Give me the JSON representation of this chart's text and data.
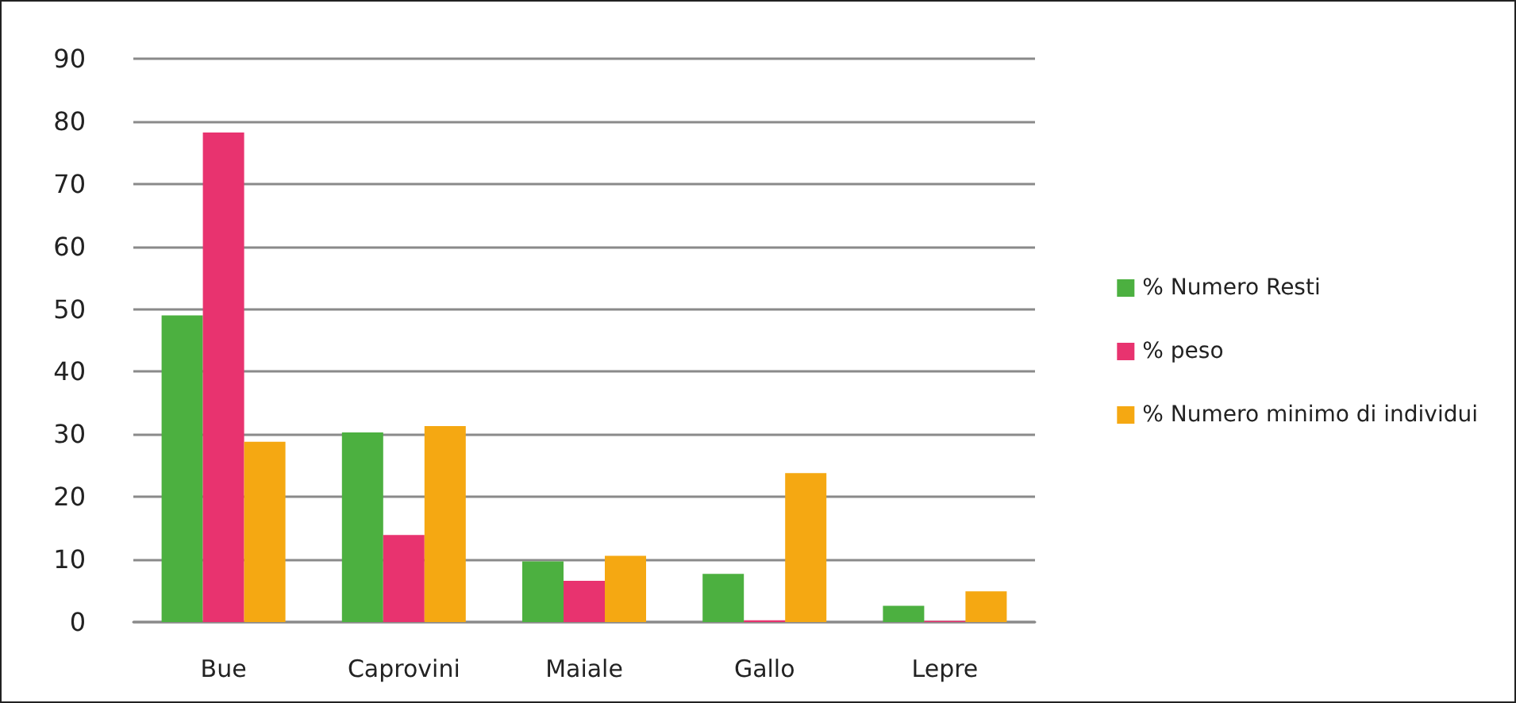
{
  "chart_data": {
    "type": "bar",
    "categories": [
      "Bue",
      "Caprovini",
      "Maiale",
      "Gallo",
      "Lepre"
    ],
    "series": [
      {
        "name": "% Numero Resti",
        "color": "#4cb040",
        "values": [
          49.0,
          30.3,
          9.7,
          7.7,
          2.6
        ]
      },
      {
        "name": "% peso",
        "color": "#e8336f",
        "values": [
          78.2,
          13.9,
          6.6,
          0.3,
          0.2
        ]
      },
      {
        "name": "% Numero minimo di individui",
        "color": "#f5a812",
        "values": [
          28.8,
          31.3,
          10.6,
          23.8,
          4.9
        ]
      }
    ],
    "ylim": [
      0,
      90
    ],
    "yticks": [
      0,
      10,
      20,
      30,
      40,
      50,
      60,
      70,
      80,
      90
    ],
    "grid": "y",
    "legend": "right"
  }
}
